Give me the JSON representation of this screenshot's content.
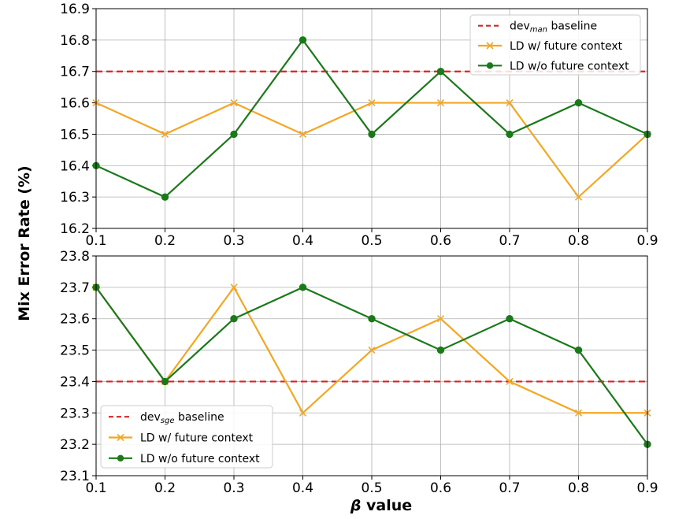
{
  "ylabel": "Mix Error Rate (%)",
  "xlabel_symbol": "β",
  "xlabel_text": " value",
  "colors": {
    "baseline": "#e02020",
    "with_future": "#f5a623",
    "without_future": "#1a7a1a",
    "grid": "#b0b0b0",
    "axis": "#000000"
  },
  "chart_data": [
    {
      "type": "line",
      "x": [
        0.1,
        0.2,
        0.3,
        0.4,
        0.5,
        0.6,
        0.7,
        0.8,
        0.9
      ],
      "xlim": [
        0.1,
        0.9
      ],
      "ylim": [
        16.2,
        16.9
      ],
      "xticks": [
        "0.1",
        "0.2",
        "0.3",
        "0.4",
        "0.5",
        "0.6",
        "0.7",
        "0.8",
        "0.9"
      ],
      "yticks": [
        "16.2",
        "16.3",
        "16.4",
        "16.5",
        "16.6",
        "16.7",
        "16.8",
        "16.9"
      ],
      "baseline": {
        "value": 16.7,
        "label_main": "dev",
        "label_sub": "man",
        "label_rest": " baseline"
      },
      "series": [
        {
          "name": "LD w/ future context",
          "marker": "x",
          "values": [
            16.6,
            16.5,
            16.6,
            16.5,
            16.6,
            16.6,
            16.6,
            16.3,
            16.5
          ]
        },
        {
          "name": "LD w/o future context",
          "marker": "o",
          "values": [
            16.4,
            16.3,
            16.5,
            16.8,
            16.5,
            16.7,
            16.5,
            16.6,
            16.5
          ]
        }
      ],
      "grid": true,
      "legend_position": "top-right"
    },
    {
      "type": "line",
      "x": [
        0.1,
        0.2,
        0.3,
        0.4,
        0.5,
        0.6,
        0.7,
        0.8,
        0.9
      ],
      "xlim": [
        0.1,
        0.9
      ],
      "ylim": [
        23.1,
        23.8
      ],
      "xticks": [
        "0.1",
        "0.2",
        "0.3",
        "0.4",
        "0.5",
        "0.6",
        "0.7",
        "0.8",
        "0.9"
      ],
      "yticks": [
        "23.1",
        "23.2",
        "23.3",
        "23.4",
        "23.5",
        "23.6",
        "23.7",
        "23.8"
      ],
      "baseline": {
        "value": 23.4,
        "label_main": "dev",
        "label_sub": "sge",
        "label_rest": " baseline"
      },
      "series": [
        {
          "name": "LD w/ future context",
          "marker": "x",
          "values": [
            23.7,
            23.4,
            23.7,
            23.3,
            23.5,
            23.6,
            23.4,
            23.3,
            23.3
          ]
        },
        {
          "name": "LD w/o future context",
          "marker": "o",
          "values": [
            23.7,
            23.4,
            23.6,
            23.7,
            23.6,
            23.5,
            23.6,
            23.5,
            23.2
          ]
        }
      ],
      "grid": true,
      "legend_position": "bottom-left"
    }
  ]
}
